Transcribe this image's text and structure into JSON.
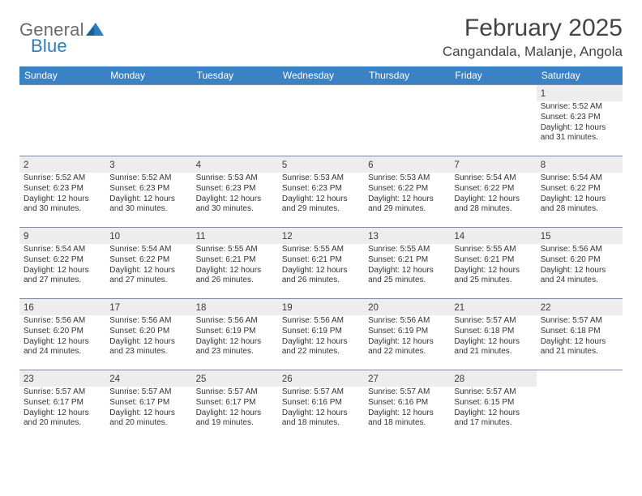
{
  "logo": {
    "word1": "General",
    "word2": "Blue"
  },
  "title": "February 2025",
  "location": "Cangandala, Malanje, Angola",
  "header_color": "#3b82c4",
  "daynum_bg": "#ededed",
  "border_color": "#7a8aa0",
  "days": [
    "Sunday",
    "Monday",
    "Tuesday",
    "Wednesday",
    "Thursday",
    "Friday",
    "Saturday"
  ],
  "weeks": [
    [
      null,
      null,
      null,
      null,
      null,
      null,
      {
        "n": "1",
        "sr": "5:52 AM",
        "ss": "6:23 PM",
        "dl": "12 hours and 31 minutes."
      }
    ],
    [
      {
        "n": "2",
        "sr": "5:52 AM",
        "ss": "6:23 PM",
        "dl": "12 hours and 30 minutes."
      },
      {
        "n": "3",
        "sr": "5:52 AM",
        "ss": "6:23 PM",
        "dl": "12 hours and 30 minutes."
      },
      {
        "n": "4",
        "sr": "5:53 AM",
        "ss": "6:23 PM",
        "dl": "12 hours and 30 minutes."
      },
      {
        "n": "5",
        "sr": "5:53 AM",
        "ss": "6:23 PM",
        "dl": "12 hours and 29 minutes."
      },
      {
        "n": "6",
        "sr": "5:53 AM",
        "ss": "6:22 PM",
        "dl": "12 hours and 29 minutes."
      },
      {
        "n": "7",
        "sr": "5:54 AM",
        "ss": "6:22 PM",
        "dl": "12 hours and 28 minutes."
      },
      {
        "n": "8",
        "sr": "5:54 AM",
        "ss": "6:22 PM",
        "dl": "12 hours and 28 minutes."
      }
    ],
    [
      {
        "n": "9",
        "sr": "5:54 AM",
        "ss": "6:22 PM",
        "dl": "12 hours and 27 minutes."
      },
      {
        "n": "10",
        "sr": "5:54 AM",
        "ss": "6:22 PM",
        "dl": "12 hours and 27 minutes."
      },
      {
        "n": "11",
        "sr": "5:55 AM",
        "ss": "6:21 PM",
        "dl": "12 hours and 26 minutes."
      },
      {
        "n": "12",
        "sr": "5:55 AM",
        "ss": "6:21 PM",
        "dl": "12 hours and 26 minutes."
      },
      {
        "n": "13",
        "sr": "5:55 AM",
        "ss": "6:21 PM",
        "dl": "12 hours and 25 minutes."
      },
      {
        "n": "14",
        "sr": "5:55 AM",
        "ss": "6:21 PM",
        "dl": "12 hours and 25 minutes."
      },
      {
        "n": "15",
        "sr": "5:56 AM",
        "ss": "6:20 PM",
        "dl": "12 hours and 24 minutes."
      }
    ],
    [
      {
        "n": "16",
        "sr": "5:56 AM",
        "ss": "6:20 PM",
        "dl": "12 hours and 24 minutes."
      },
      {
        "n": "17",
        "sr": "5:56 AM",
        "ss": "6:20 PM",
        "dl": "12 hours and 23 minutes."
      },
      {
        "n": "18",
        "sr": "5:56 AM",
        "ss": "6:19 PM",
        "dl": "12 hours and 23 minutes."
      },
      {
        "n": "19",
        "sr": "5:56 AM",
        "ss": "6:19 PM",
        "dl": "12 hours and 22 minutes."
      },
      {
        "n": "20",
        "sr": "5:56 AM",
        "ss": "6:19 PM",
        "dl": "12 hours and 22 minutes."
      },
      {
        "n": "21",
        "sr": "5:57 AM",
        "ss": "6:18 PM",
        "dl": "12 hours and 21 minutes."
      },
      {
        "n": "22",
        "sr": "5:57 AM",
        "ss": "6:18 PM",
        "dl": "12 hours and 21 minutes."
      }
    ],
    [
      {
        "n": "23",
        "sr": "5:57 AM",
        "ss": "6:17 PM",
        "dl": "12 hours and 20 minutes."
      },
      {
        "n": "24",
        "sr": "5:57 AM",
        "ss": "6:17 PM",
        "dl": "12 hours and 20 minutes."
      },
      {
        "n": "25",
        "sr": "5:57 AM",
        "ss": "6:17 PM",
        "dl": "12 hours and 19 minutes."
      },
      {
        "n": "26",
        "sr": "5:57 AM",
        "ss": "6:16 PM",
        "dl": "12 hours and 18 minutes."
      },
      {
        "n": "27",
        "sr": "5:57 AM",
        "ss": "6:16 PM",
        "dl": "12 hours and 18 minutes."
      },
      {
        "n": "28",
        "sr": "5:57 AM",
        "ss": "6:15 PM",
        "dl": "12 hours and 17 minutes."
      },
      null
    ]
  ],
  "labels": {
    "sunrise": "Sunrise: ",
    "sunset": "Sunset: ",
    "daylight": "Daylight: "
  }
}
